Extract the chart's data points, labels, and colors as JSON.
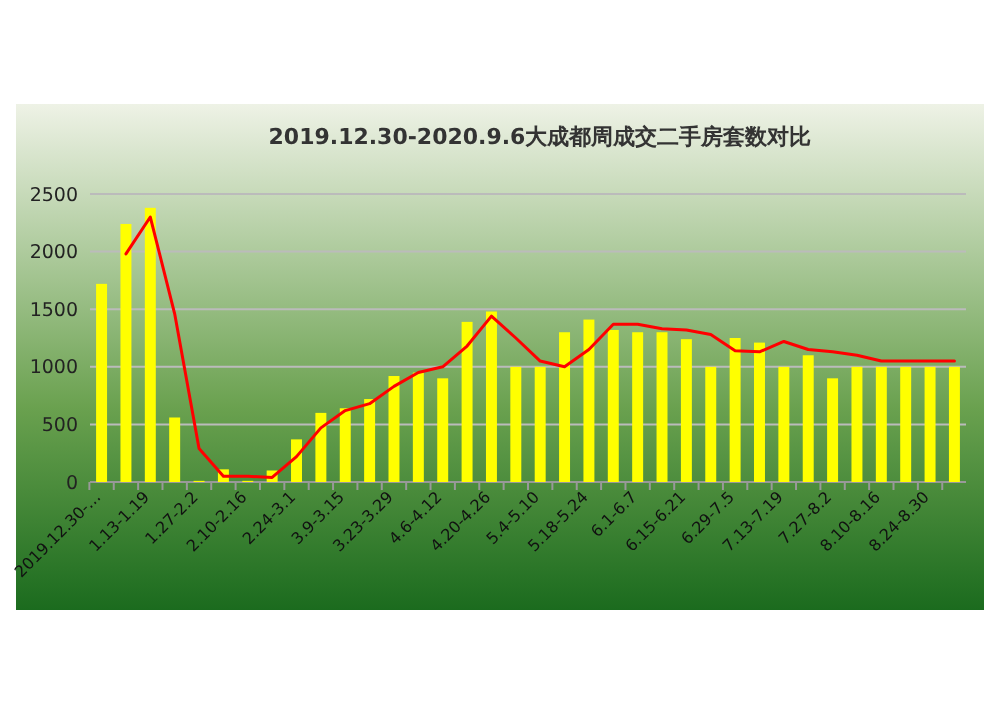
{
  "chart_data": {
    "type": "bar",
    "title": "2019.12.30-2020.9.6大成都周成交二手房套数对比",
    "categories": [
      "2019.12.30-…",
      null,
      "1.13-1.19",
      null,
      "1.27-2.2",
      null,
      "2.10-2.16",
      null,
      "2.24-3.1",
      null,
      "3.9-3.15",
      null,
      "3.23-3.29",
      null,
      "4.6-4.12",
      null,
      "4.20-4.26",
      null,
      "5.4-5.10",
      null,
      "5.18-5.24",
      null,
      "6.1-6.7",
      null,
      "6.15-6.21",
      null,
      "6.29-7.5",
      null,
      "7.13-7.19",
      null,
      "7.27-8.2",
      null,
      "8.10-8.16",
      null,
      "8.24-8.30",
      null
    ],
    "series": [
      {
        "color": "#ffff00",
        "values": [
          1720,
          2240,
          2380,
          560,
          10,
          110,
          10,
          100,
          370,
          600,
          640,
          720,
          920,
          950,
          900,
          1390,
          1480,
          1000,
          1000,
          1300,
          1410,
          1320,
          1300,
          1300,
          1240,
          1000,
          1250,
          1210,
          1000,
          1100,
          900,
          1000,
          1000,
          1000,
          1000,
          1000
        ]
      },
      {
        "type": "line",
        "color": "#ff0000",
        "values": [
          null,
          1980,
          2300,
          1460,
          290,
          50,
          50,
          40,
          220,
          470,
          620,
          680,
          830,
          950,
          1000,
          1180,
          1440,
          1250,
          1050,
          1000,
          1150,
          1370,
          1370,
          1330,
          1320,
          1280,
          1140,
          1130,
          1220,
          1150,
          1130,
          1100,
          1050,
          1050,
          1050,
          1050
        ]
      }
    ],
    "ylim": [
      0,
      2500
    ],
    "yticks": [
      0,
      500,
      1000,
      1500,
      2000,
      2500
    ],
    "grid": "y"
  }
}
